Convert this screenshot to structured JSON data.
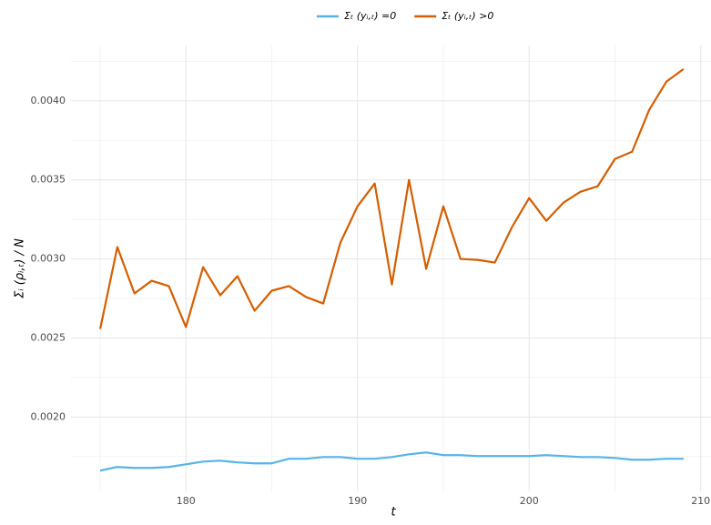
{
  "chart_data": {
    "type": "line",
    "x_label": "t",
    "y_label": "Σᵢ (ρᵢ,ₜ) / N",
    "x": [
      175,
      176,
      177,
      178,
      179,
      180,
      181,
      182,
      183,
      184,
      185,
      186,
      187,
      188,
      189,
      190,
      191,
      192,
      193,
      194,
      195,
      196,
      197,
      198,
      199,
      200,
      201,
      202,
      203,
      204,
      205,
      206,
      207,
      208,
      209
    ],
    "series": [
      {
        "name": "Σₜ (yᵢ,ₜ) =0",
        "color": "#56b4e9",
        "values": [
          0.001661,
          0.001684,
          0.001678,
          0.001678,
          0.001684,
          0.001701,
          0.001718,
          0.001724,
          0.001713,
          0.001707,
          0.001707,
          0.001736,
          0.001736,
          0.001747,
          0.001747,
          0.001736,
          0.001736,
          0.001747,
          0.001764,
          0.001776,
          0.001759,
          0.001759,
          0.001753,
          0.001753,
          0.001753,
          0.001753,
          0.001759,
          0.001753,
          0.001747,
          0.001747,
          0.001741,
          0.00173,
          0.00173,
          0.001736,
          0.001736
        ]
      },
      {
        "name": "Σₜ (yᵢ,ₜ) >0",
        "color": "#d55e00",
        "values": [
          0.002557,
          0.003075,
          0.002782,
          0.002862,
          0.002828,
          0.002569,
          0.002948,
          0.00277,
          0.002891,
          0.002672,
          0.002799,
          0.002828,
          0.002759,
          0.002718,
          0.003103,
          0.003333,
          0.003477,
          0.002839,
          0.0035,
          0.002937,
          0.003333,
          0.003,
          0.002994,
          0.002977,
          0.003201,
          0.003385,
          0.003241,
          0.003356,
          0.003425,
          0.00346,
          0.003632,
          0.003678,
          0.003943,
          0.004121,
          0.004201
        ]
      }
    ],
    "xlim": [
      173.3,
      210.6
    ],
    "ylim": [
      0.00153,
      0.00435
    ],
    "xticks": [
      180,
      190,
      200,
      210
    ],
    "yticks": [
      {
        "value": 0.002,
        "label": "0.0020"
      },
      {
        "value": 0.0025,
        "label": "0.0025"
      },
      {
        "value": 0.003,
        "label": "0.0030"
      },
      {
        "value": 0.0035,
        "label": "0.0035"
      },
      {
        "value": 0.004,
        "label": "0.0040"
      }
    ],
    "minor_xticks": [
      175,
      185,
      195,
      205
    ],
    "minor_yticks": [
      0.00175,
      0.00225,
      0.00275,
      0.00325,
      0.00375,
      0.00425
    ],
    "grid": true,
    "legend": "top"
  }
}
